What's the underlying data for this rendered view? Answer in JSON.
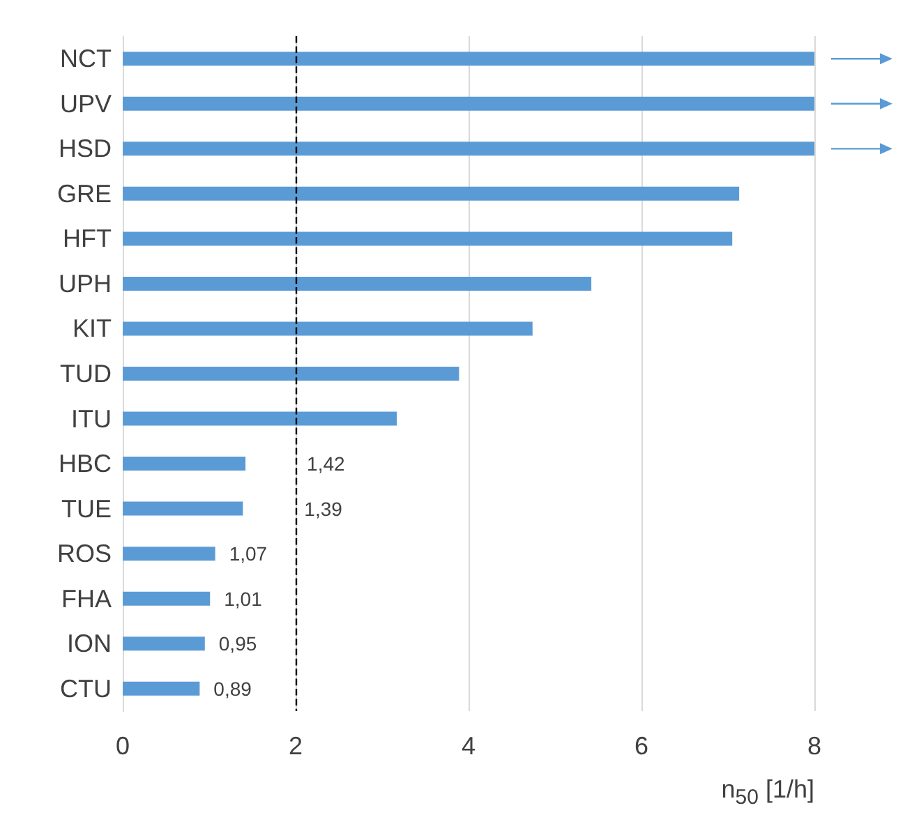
{
  "chart_data": {
    "type": "bar",
    "orientation": "horizontal",
    "categories": [
      "NCT",
      "UPV",
      "HSD",
      "GRE",
      "HFT",
      "UPH",
      "KIT",
      "TUD",
      "ITU",
      "HBC",
      "TUE",
      "ROS",
      "FHA",
      "ION",
      "CTU"
    ],
    "values": [
      8,
      8,
      8,
      7.13,
      7.05,
      5.42,
      4.74,
      3.89,
      3.17,
      1.42,
      1.39,
      1.07,
      1.01,
      0.95,
      0.89
    ],
    "value_labels": [
      null,
      null,
      null,
      null,
      null,
      null,
      null,
      null,
      null,
      "1,42",
      "1,39",
      "1,07",
      "1,01",
      "0,95",
      "0,89"
    ],
    "color": "#5b9bd5",
    "xlim": [
      0,
      8
    ],
    "xticks": [
      0,
      2,
      4,
      6,
      8
    ],
    "grid": "x",
    "xlabel": "n$_{50}$ [1/h]",
    "ref_lines": [
      {
        "axis": "x",
        "value": 2,
        "color": "#000000",
        "line_style": "dashed"
      }
    ]
  }
}
